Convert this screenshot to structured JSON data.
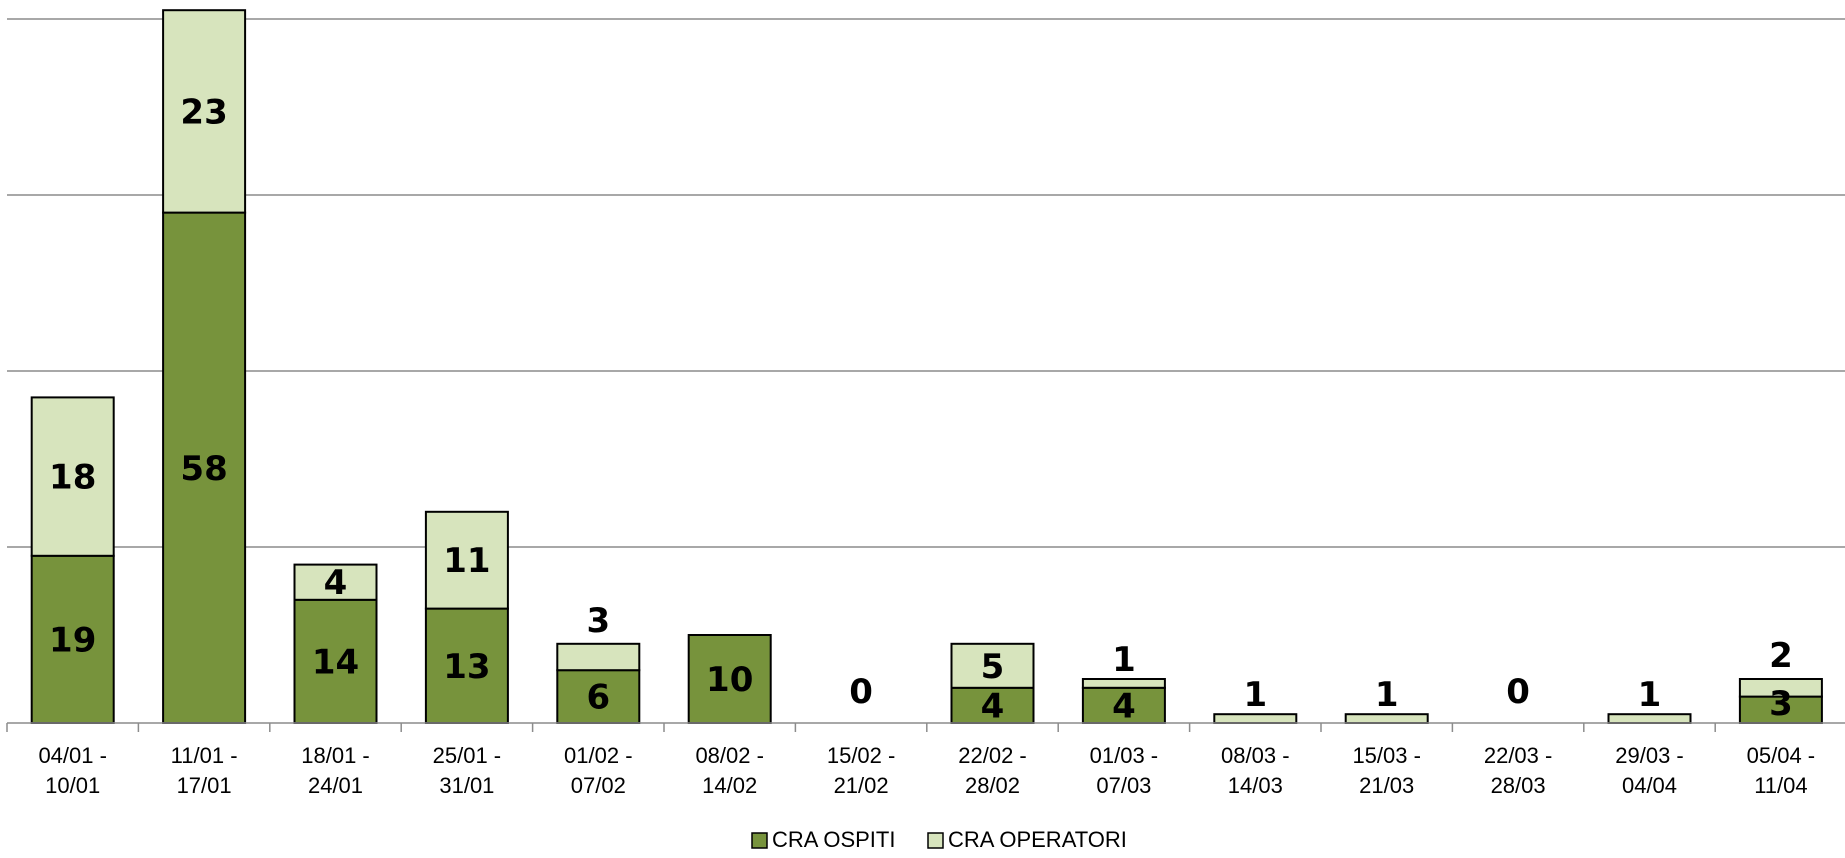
{
  "chart_data": {
    "type": "bar",
    "stacked": true,
    "categories": [
      [
        "04/01 -",
        "10/01"
      ],
      [
        "11/01 -",
        "17/01"
      ],
      [
        "18/01 -",
        "24/01"
      ],
      [
        "25/01 -",
        "31/01"
      ],
      [
        "01/02 -",
        "07/02"
      ],
      [
        "08/02 -",
        "14/02"
      ],
      [
        "15/02 -",
        "21/02"
      ],
      [
        "22/02 -",
        "28/02"
      ],
      [
        "01/03 -",
        "07/03"
      ],
      [
        "08/03 -",
        "14/03"
      ],
      [
        "15/03 -",
        "21/03"
      ],
      [
        "22/03 -",
        "28/03"
      ],
      [
        "29/03 -",
        "04/04"
      ],
      [
        "05/04 -",
        "11/04"
      ]
    ],
    "series": [
      {
        "name": "CRA OSPITI",
        "color": "#77933c",
        "values": [
          19,
          58,
          14,
          13,
          6,
          10,
          0,
          4,
          4,
          0,
          0,
          0,
          0,
          3
        ]
      },
      {
        "name": "CRA OPERATORI",
        "color": "#d7e4bd",
        "values": [
          18,
          23,
          4,
          11,
          3,
          0,
          0,
          5,
          1,
          1,
          1,
          0,
          1,
          2
        ]
      }
    ],
    "labels": {
      "ospiti": [
        "19",
        "58",
        "14",
        "13",
        "6",
        "10",
        "",
        "4",
        "4",
        "",
        "",
        "",
        "",
        "3"
      ],
      "operatori": [
        "18",
        "23",
        "4",
        "11",
        "3",
        "",
        "",
        "5",
        "1",
        "1",
        "1",
        "",
        "1",
        "2"
      ],
      "totals": [
        "",
        "",
        "",
        "",
        "",
        "",
        "0",
        "",
        "",
        "",
        "",
        "0",
        "",
        ""
      ]
    },
    "ylim": [
      0,
      80
    ],
    "gridlines": [
      20,
      40,
      60,
      80
    ],
    "grid": true,
    "legend_position": "bottom",
    "title": "",
    "xlabel": "",
    "ylabel": ""
  }
}
